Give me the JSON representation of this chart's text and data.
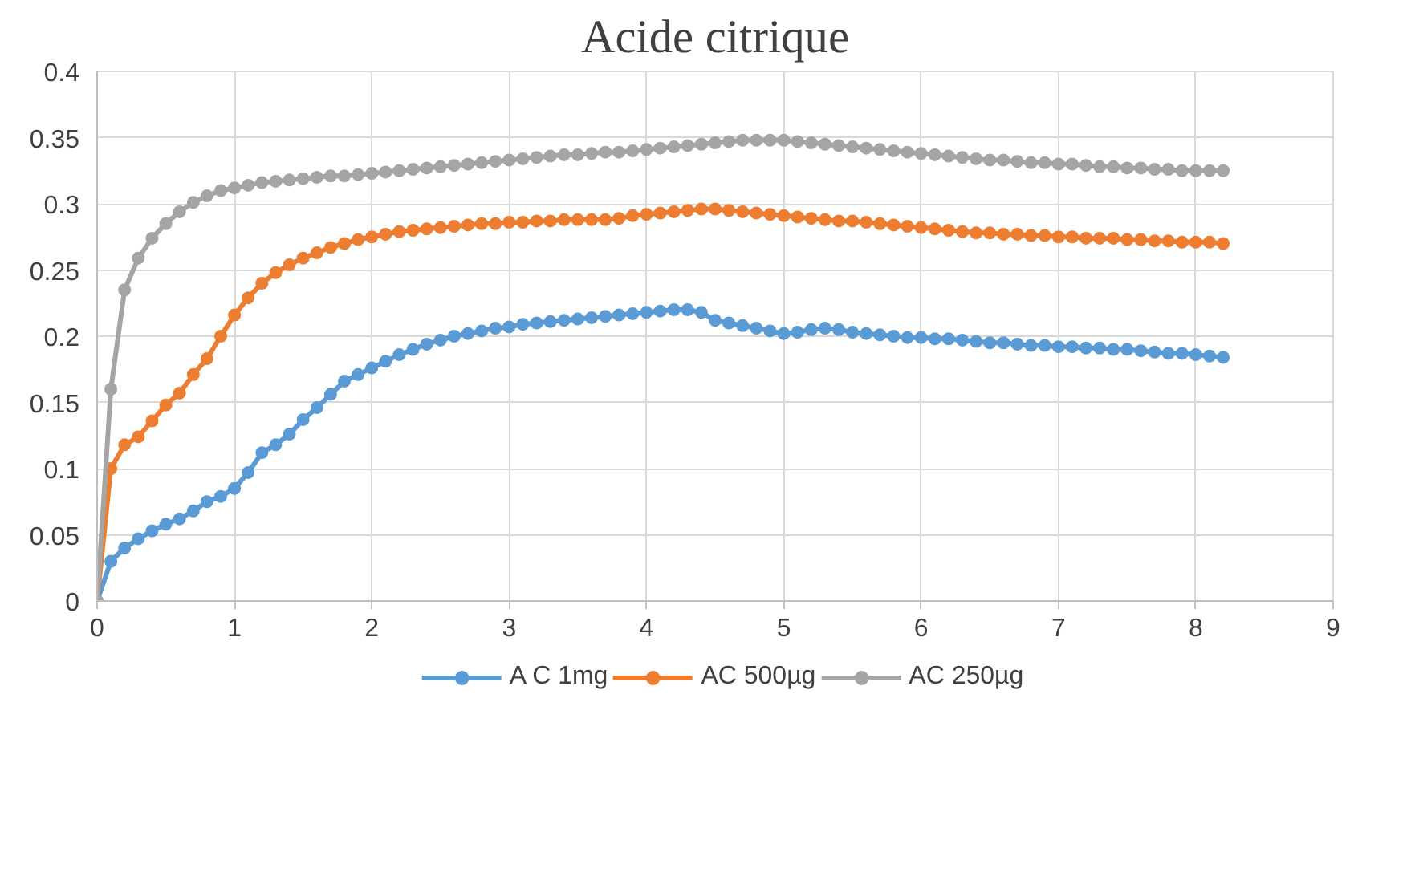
{
  "chart_data": {
    "type": "line",
    "title": "Acide citrique",
    "marker": "circle",
    "grid": true,
    "legend": "bottom",
    "xlim": [
      0,
      9
    ],
    "xticks": [
      0,
      1,
      2,
      3,
      4,
      5,
      6,
      7,
      8,
      9
    ],
    "ylim": [
      0,
      0.4
    ],
    "yticks": [
      0,
      0.05,
      0.1,
      0.15,
      0.2,
      0.25,
      0.3,
      0.35,
      0.4
    ],
    "x": [
      0,
      0.1,
      0.2,
      0.3,
      0.4,
      0.5,
      0.6,
      0.7,
      0.8,
      0.9,
      1.0,
      1.1,
      1.2,
      1.3,
      1.4,
      1.5,
      1.6,
      1.7,
      1.8,
      1.9,
      2.0,
      2.1,
      2.2,
      2.3,
      2.4,
      2.5,
      2.6,
      2.7,
      2.8,
      2.9,
      3.0,
      3.1,
      3.2,
      3.3,
      3.4,
      3.5,
      3.6,
      3.7,
      3.8,
      3.9,
      4.0,
      4.1,
      4.2,
      4.3,
      4.4,
      4.5,
      4.6,
      4.7,
      4.8,
      4.9,
      5.0,
      5.1,
      5.2,
      5.3,
      5.4,
      5.5,
      5.6,
      5.7,
      5.8,
      5.9,
      6.0,
      6.1,
      6.2,
      6.3,
      6.4,
      6.5,
      6.6,
      6.7,
      6.8,
      6.9,
      7.0,
      7.1,
      7.2,
      7.3,
      7.4,
      7.5,
      7.6,
      7.7,
      7.8,
      7.9,
      8.0,
      8.1,
      8.2
    ],
    "series": [
      {
        "name": "A C 1mg",
        "color": "#5b9bd5",
        "values": [
          0,
          0.03,
          0.04,
          0.047,
          0.053,
          0.058,
          0.062,
          0.068,
          0.075,
          0.079,
          0.085,
          0.097,
          0.112,
          0.118,
          0.126,
          0.137,
          0.146,
          0.156,
          0.166,
          0.171,
          0.176,
          0.181,
          0.186,
          0.19,
          0.194,
          0.197,
          0.2,
          0.202,
          0.204,
          0.206,
          0.207,
          0.209,
          0.21,
          0.211,
          0.212,
          0.213,
          0.214,
          0.215,
          0.216,
          0.217,
          0.218,
          0.219,
          0.22,
          0.22,
          0.218,
          0.212,
          0.21,
          0.208,
          0.206,
          0.204,
          0.202,
          0.203,
          0.205,
          0.206,
          0.205,
          0.203,
          0.202,
          0.201,
          0.2,
          0.199,
          0.199,
          0.198,
          0.198,
          0.197,
          0.196,
          0.195,
          0.195,
          0.194,
          0.193,
          0.193,
          0.192,
          0.192,
          0.191,
          0.191,
          0.19,
          0.19,
          0.189,
          0.188,
          0.187,
          0.187,
          0.186,
          0.185,
          0.184
        ]
      },
      {
        "name": "AC 500µg",
        "color": "#ed7d31",
        "values": [
          0,
          0.1,
          0.118,
          0.124,
          0.136,
          0.148,
          0.157,
          0.171,
          0.183,
          0.2,
          0.216,
          0.229,
          0.24,
          0.248,
          0.254,
          0.259,
          0.263,
          0.267,
          0.27,
          0.273,
          0.275,
          0.277,
          0.279,
          0.28,
          0.281,
          0.282,
          0.283,
          0.284,
          0.285,
          0.285,
          0.286,
          0.286,
          0.287,
          0.287,
          0.288,
          0.288,
          0.288,
          0.288,
          0.289,
          0.291,
          0.292,
          0.293,
          0.294,
          0.295,
          0.296,
          0.296,
          0.295,
          0.294,
          0.293,
          0.292,
          0.291,
          0.29,
          0.289,
          0.288,
          0.287,
          0.287,
          0.286,
          0.285,
          0.284,
          0.283,
          0.282,
          0.281,
          0.28,
          0.279,
          0.278,
          0.278,
          0.277,
          0.277,
          0.276,
          0.276,
          0.275,
          0.275,
          0.274,
          0.274,
          0.274,
          0.273,
          0.273,
          0.272,
          0.272,
          0.271,
          0.271,
          0.271,
          0.27
        ]
      },
      {
        "name": "AC 250µg",
        "color": "#a5a5a5",
        "values": [
          0,
          0.16,
          0.235,
          0.259,
          0.274,
          0.285,
          0.294,
          0.301,
          0.306,
          0.31,
          0.312,
          0.314,
          0.316,
          0.317,
          0.318,
          0.319,
          0.32,
          0.321,
          0.321,
          0.322,
          0.323,
          0.324,
          0.325,
          0.326,
          0.327,
          0.328,
          0.329,
          0.33,
          0.331,
          0.332,
          0.333,
          0.334,
          0.335,
          0.336,
          0.337,
          0.337,
          0.338,
          0.339,
          0.339,
          0.34,
          0.341,
          0.342,
          0.343,
          0.344,
          0.345,
          0.346,
          0.347,
          0.348,
          0.348,
          0.348,
          0.348,
          0.347,
          0.346,
          0.345,
          0.344,
          0.343,
          0.342,
          0.341,
          0.34,
          0.339,
          0.338,
          0.337,
          0.336,
          0.335,
          0.334,
          0.333,
          0.333,
          0.332,
          0.331,
          0.331,
          0.33,
          0.33,
          0.329,
          0.328,
          0.328,
          0.327,
          0.327,
          0.326,
          0.326,
          0.325,
          0.325,
          0.325,
          0.325
        ]
      }
    ]
  }
}
